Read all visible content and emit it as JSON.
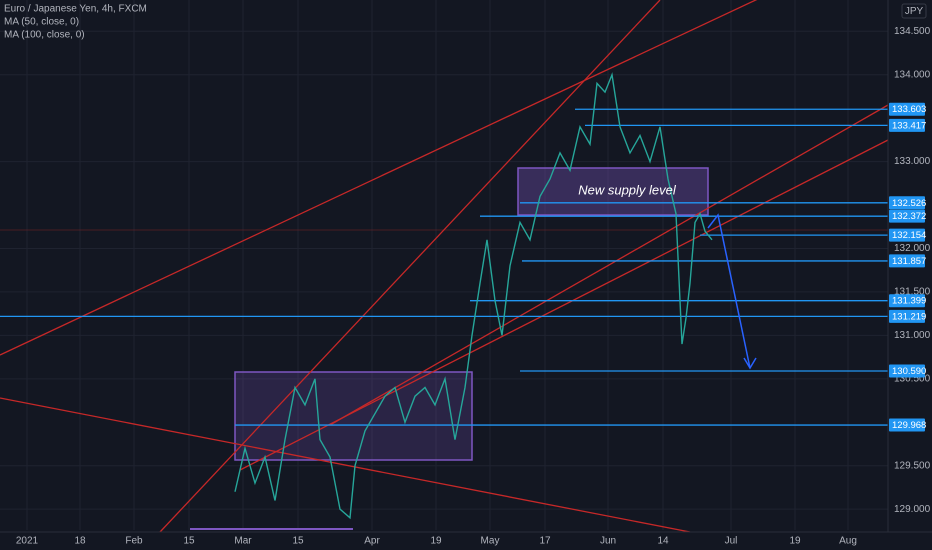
{
  "chart_data": {
    "type": "line",
    "title": "Euro / Japanese Yen, 4h, FXCM",
    "indicators": [
      "MA (50, close, 0)",
      "MA (100, close, 0)"
    ],
    "currency": "JPY",
    "annotation": "New supply level",
    "xlim": [
      -5.4,
      172.2
    ],
    "ylim": [
      128.76,
      134.86
    ],
    "xticks": [
      {
        "value": 0,
        "label": "2021"
      },
      {
        "value": 10.6,
        "label": "18"
      },
      {
        "value": 21.4,
        "label": "Feb"
      },
      {
        "value": 32.4,
        "label": "15"
      },
      {
        "value": 43.2,
        "label": "Mar"
      },
      {
        "value": 54.2,
        "label": "15"
      },
      {
        "value": 69,
        "label": "Apr"
      },
      {
        "value": 81.8,
        "label": "19"
      },
      {
        "value": 92.6,
        "label": "May"
      },
      {
        "value": 103.6,
        "label": "17"
      },
      {
        "value": 116.2,
        "label": "Jun"
      },
      {
        "value": 127.2,
        "label": "14"
      },
      {
        "value": 140.8,
        "label": "Jul"
      },
      {
        "value": 153.6,
        "label": "19"
      },
      {
        "value": 164.2,
        "label": "Aug"
      }
    ],
    "yticks": [
      {
        "value": 134.5,
        "label": "134.500"
      },
      {
        "value": 134,
        "label": "134.000"
      },
      {
        "value": 133,
        "label": "133.000"
      },
      {
        "value": 132,
        "label": "132.000"
      },
      {
        "value": 131.5,
        "label": "131.500"
      },
      {
        "value": 131,
        "label": "131.000"
      },
      {
        "value": 130.5,
        "label": "130.500"
      },
      {
        "value": 129.5,
        "label": "129.500"
      },
      {
        "value": 129,
        "label": "129.000"
      }
    ],
    "grid": true,
    "series": [
      {
        "color": "#26a69a",
        "x": [
          41.6,
          43.6,
          45.6,
          47.6,
          49.6,
          51.6,
          53.6,
          55.6,
          57.6,
          58.6,
          60.6,
          62.6,
          64.6,
          65.6,
          67.6,
          69.6,
          71.6,
          73.6,
          75.6,
          77.6,
          79.6,
          81.6,
          83.6,
          85.6,
          87.6,
          89,
          90.6,
          92,
          93.6,
          95,
          96.6,
          98.6,
          100.6,
          102.6,
          104.6,
          106.6,
          108.6,
          110.6,
          112.6,
          114,
          115.6,
          117,
          118.6,
          120.6,
          122.6,
          124.6,
          126.6,
          128.2,
          129.8,
          131,
          131.8,
          132.6,
          133.6,
          134.6,
          135.6,
          137
        ],
        "values": [
          129.2,
          129.7,
          129.3,
          129.6,
          129.1,
          129.8,
          130.4,
          130.2,
          130.5,
          129.8,
          129.6,
          129.0,
          128.9,
          129.5,
          129.9,
          130.1,
          130.3,
          130.4,
          130.0,
          130.3,
          130.4,
          130.2,
          130.5,
          129.8,
          130.4,
          131.0,
          131.6,
          132.1,
          131.4,
          131.0,
          131.8,
          132.3,
          132.1,
          132.6,
          132.8,
          133.1,
          132.9,
          133.4,
          133.2,
          133.9,
          133.8,
          134.0,
          133.4,
          133.1,
          133.3,
          133.0,
          133.4,
          132.8,
          132.4,
          130.9,
          131.2,
          131.6,
          132.3,
          132.4,
          132.2,
          132.1
        ]
      }
    ],
    "levels": {
      "color": "#2196f3",
      "values": [
        133.603,
        133.417,
        132.526,
        132.372,
        132.154,
        131.857,
        131.399,
        131.219,
        130.59,
        129.968
      ],
      "value_labels": [
        "133.603",
        "133.417",
        "132.526",
        "132.372",
        "132.154",
        "131.857",
        "131.399",
        "131.219",
        "130.590",
        "129.968"
      ],
      "x_start": [
        109.6,
        111.6,
        98.6,
        90.6,
        134.6,
        99,
        88.6,
        -5.4,
        98.6,
        41.6
      ]
    }
  }
}
